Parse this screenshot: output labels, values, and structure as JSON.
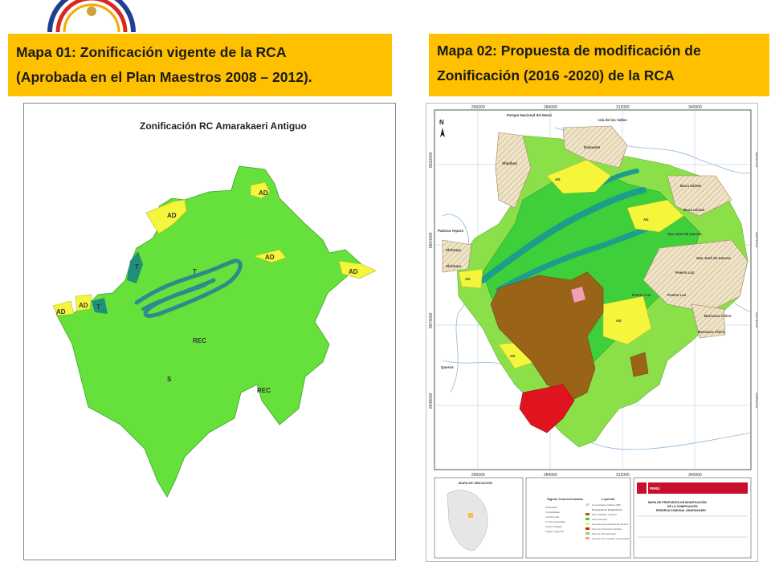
{
  "caption_left": {
    "line1": "Mapa 01: Zonificación vigente de la RCA",
    "line2": "(Aprobada en el Plan Maestros 2008 – 2012)."
  },
  "caption_right": {
    "line1": "Mapa 02: Propuesta de modificación de",
    "line2": "Zonificación (2016 -2020) de la RCA"
  },
  "map1": {
    "title": "Zonificación RC Amarakaeri Antiguo",
    "labels": {
      "ad1": "AD",
      "ad2": "AD",
      "ad3": "AD",
      "ad4": "AD",
      "ad5": "AD",
      "ad6": "AD",
      "t1": "T",
      "t2": "T",
      "t3": "T",
      "rec1": "REC",
      "rec2": "REC",
      "s": "S"
    },
    "colors": {
      "green": "#66e03a",
      "yellow": "#f5f53c",
      "teal": "#1f8f7a",
      "river": "#2e8b8b"
    }
  },
  "map2": {
    "north": "N",
    "top_coords": [
      "256000",
      "284000",
      "312000",
      "340000"
    ],
    "bottom_coords": [
      "256000",
      "284000",
      "312000",
      "340000"
    ],
    "left_coords": [
      "8632000",
      "8604000",
      "8576000",
      "8548000"
    ],
    "right_coords": [
      "8632000",
      "8604000",
      "8576000",
      "8548000"
    ],
    "places": {
      "parque": "Parque Nacional del Manú",
      "isla": "Isla de los Valles",
      "diamante": "Diamante",
      "shipibari": "Shipibari",
      "boca_isiriwe": "Boca Isiriwe",
      "boca_isiriwe2": "Boca Isiriwe",
      "palotoa": "Palotoa Teparo",
      "shintuya": "Shintuya",
      "shintuya2": "Shintuya",
      "san_jose": "San José de Karene",
      "san_jose2": "San José de Karene",
      "puerto_luz": "Puerto Luz",
      "puerto_luz2": "Puerto Luz",
      "puerto_luz3": "Puerto Luz",
      "barranco": "Barranco Chico",
      "barranco2": "Barranco Chico",
      "quero": "Queros",
      "ad1": "AD",
      "ad2": "AD",
      "ad3": "AD",
      "ad4": "AD",
      "ad5": "AD"
    },
    "footer": {
      "ubicacion": "MAPA DE UBICACIÓN",
      "signos": "Signos Convencionales",
      "leyenda": "Leyenda",
      "peru": "PERÚ",
      "titulo1": "MAPA DE PROPUESTA DE MODIFICACIÓN",
      "titulo2": "DE LA ZONIFICACIÓN",
      "titulo3": "RESERVA COMUNAL AMARAKAERI",
      "legend_items": [
        "Comunidades Nativas (BD)",
        "Propuesta de Zonificación",
        "Zona Histórico Cultural",
        "Zona Silvestre",
        "Zona de Aprovechamiento Directo",
        "Zona de Protección Estricta",
        "Zona de Recuperación",
        "Zona de Uso Turístico y Recreativo"
      ],
      "sign_items": [
        "Hidrografía",
        "Vía Asfaltada",
        "Vía Afirmada",
        "Trocha Carrozable",
        "Centro Poblado",
        "Lagos y Lagunas"
      ]
    },
    "colors": {
      "light_green": "#8be04a",
      "green": "#3fcf3a",
      "yellow": "#f5f53c",
      "brown": "#9a6418",
      "red": "#e0141e",
      "teal": "#1c9e8a",
      "hatch": "#f0e4c8",
      "pink": "#f2a0b4"
    }
  }
}
